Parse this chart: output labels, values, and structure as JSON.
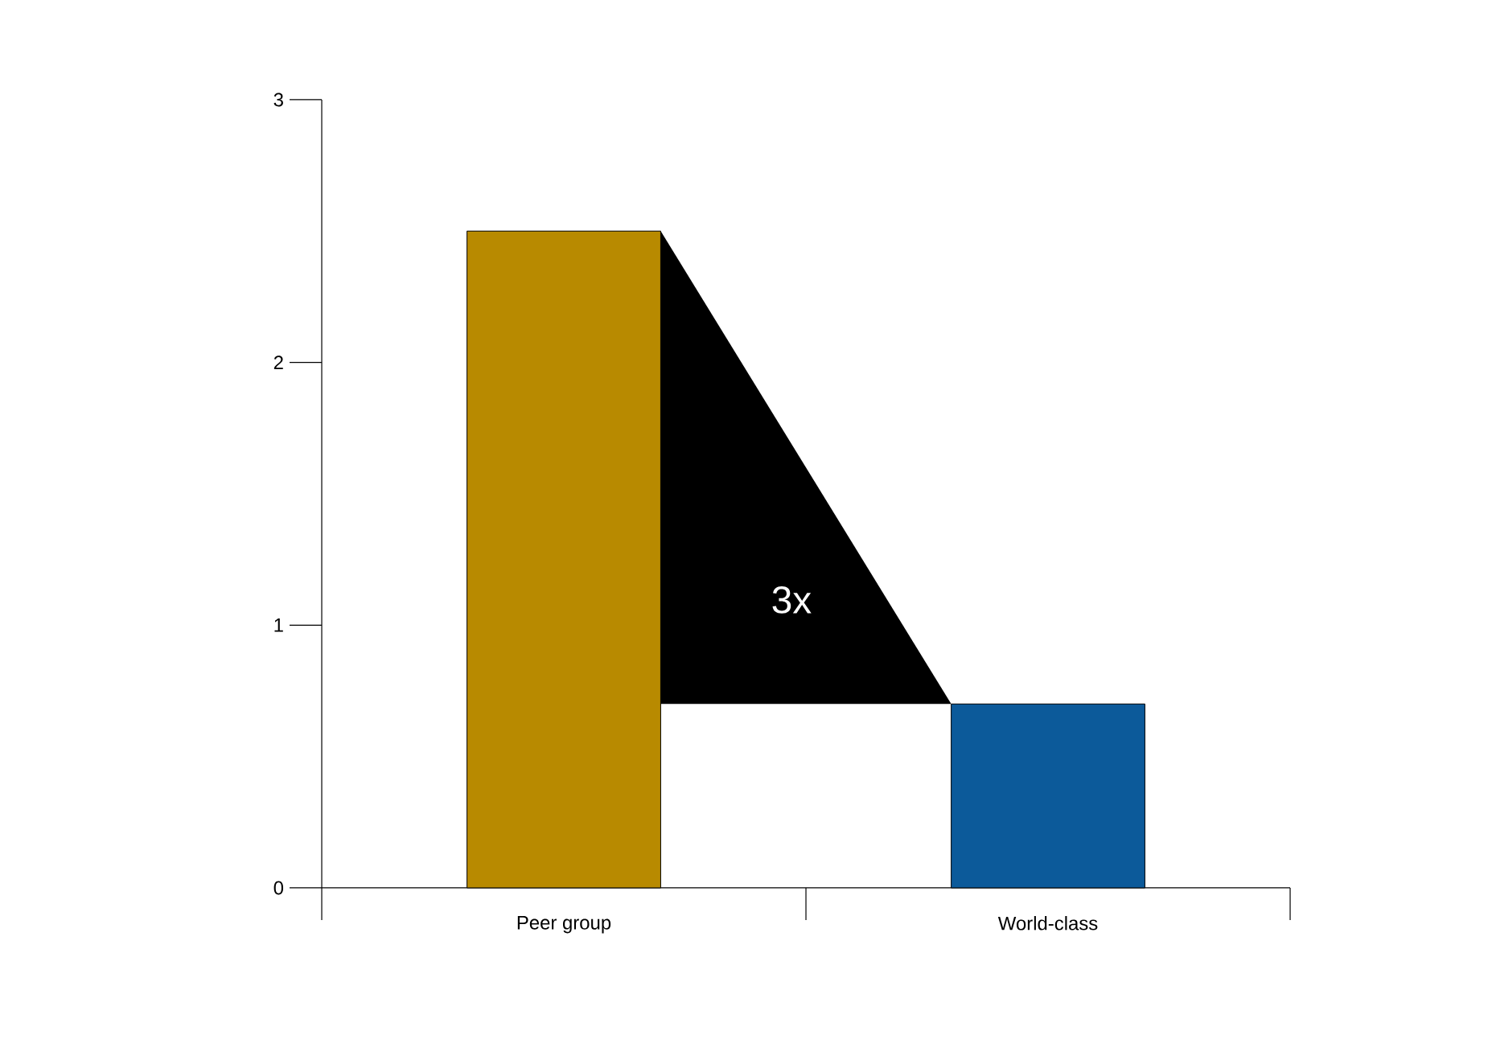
{
  "chart_data": {
    "type": "bar",
    "categories": [
      "Peer group",
      "World-class"
    ],
    "values": [
      2.5,
      0.7
    ],
    "colors": [
      "#b88a00",
      "#0c5a9a"
    ],
    "ylim": [
      0,
      3
    ],
    "yticks": [
      0,
      1,
      2,
      3
    ],
    "grid": false,
    "annotations": [
      "3x"
    ]
  }
}
